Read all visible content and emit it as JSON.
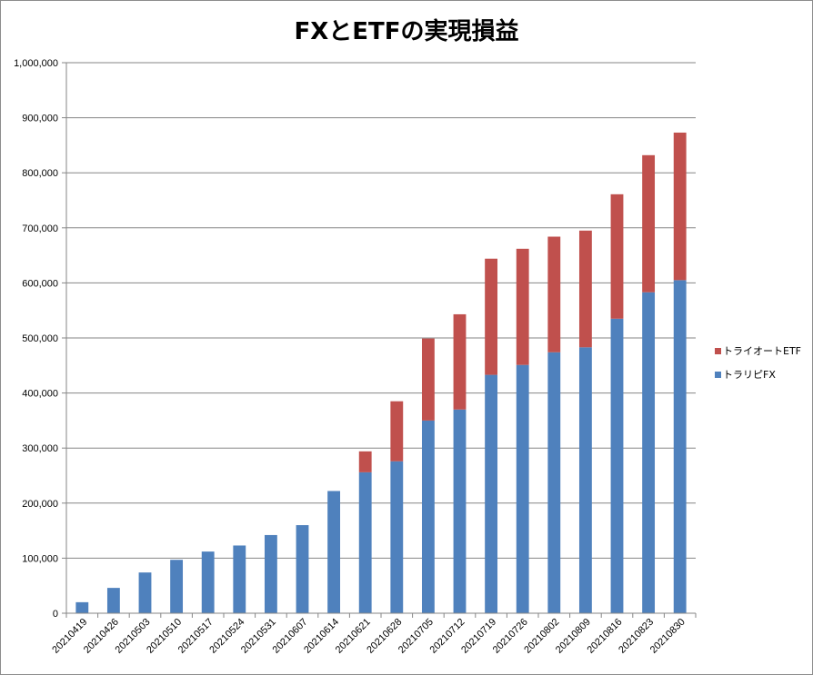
{
  "chart_data": {
    "type": "bar",
    "stacked": true,
    "title": "FXとETFの実現損益",
    "xlabel": "",
    "ylabel": "",
    "ylim": [
      0,
      1000000
    ],
    "yticks": [
      0,
      100000,
      200000,
      300000,
      400000,
      500000,
      600000,
      700000,
      800000,
      900000,
      1000000
    ],
    "ytick_labels": [
      "0",
      "100,000",
      "200,000",
      "300,000",
      "400,000",
      "500,000",
      "600,000",
      "700,000",
      "800,000",
      "900,000",
      "1,000,000"
    ],
    "grid": true,
    "legend_position": "right",
    "categories": [
      "20210419",
      "20210426",
      "20210503",
      "20210510",
      "20210517",
      "20210524",
      "20210531",
      "20210607",
      "20210614",
      "20210621",
      "20210628",
      "20210705",
      "20210712",
      "20210719",
      "20210726",
      "20210802",
      "20210809",
      "20210816",
      "20210823",
      "20210830"
    ],
    "series": [
      {
        "name": "トラリピFX",
        "color": "#4f81bd",
        "values": [
          20000,
          46000,
          74000,
          97000,
          112000,
          123000,
          142000,
          160000,
          222000,
          256000,
          276000,
          350000,
          370000,
          433000,
          451000,
          474000,
          483000,
          535000,
          583000,
          605000
        ]
      },
      {
        "name": "トライオートETF",
        "color": "#c0504d",
        "values": [
          0,
          0,
          0,
          0,
          0,
          0,
          0,
          0,
          0,
          38000,
          109000,
          149000,
          173000,
          211000,
          211000,
          210000,
          212000,
          226000,
          249000,
          268000
        ]
      }
    ]
  }
}
